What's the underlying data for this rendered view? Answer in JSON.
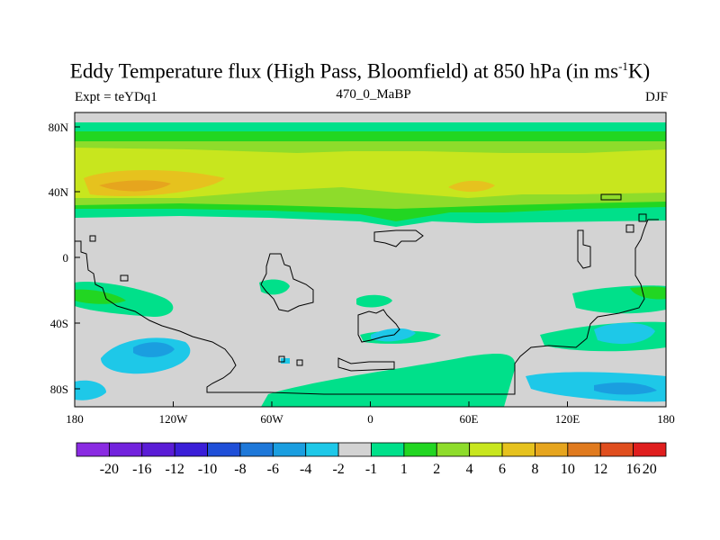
{
  "title": {
    "main": "Eddy Temperature flux (High Pass, Bloomfield) at 850 hPa (in ms",
    "superscript": "-1",
    "tail": "K)"
  },
  "subtitle_left": "Expt = teYDq1",
  "subtitle_center": "470_0_MaBP",
  "subtitle_right": "DJF",
  "axes": {
    "x_ticks": [
      "180",
      "120W",
      "60W",
      "0",
      "60E",
      "120E",
      "180"
    ],
    "y_ticks": [
      "80N",
      "40N",
      "0",
      "40S",
      "80S"
    ]
  },
  "colorbar": {
    "labels": [
      "-20",
      "-16",
      "-12",
      "-10",
      "-8",
      "-6",
      "-4",
      "-2",
      "-1",
      "1",
      "2",
      "4",
      "6",
      "8",
      "10",
      "12",
      "16",
      "20"
    ],
    "colors": [
      "#8a2be2",
      "#7222dd",
      "#5a1cd6",
      "#3a1ed8",
      "#1f4fd8",
      "#1e78d9",
      "#1a9ee0",
      "#1ec8e8",
      "#d3d3d3",
      "#00e08a",
      "#22d622",
      "#8edc2b",
      "#c8e61e",
      "#e6c21e",
      "#e6a51e",
      "#e07a1e",
      "#e04e1e",
      "#e01e1e"
    ]
  },
  "colors": {
    "background_field": "#d3d3d3",
    "coastline": "#000000"
  }
}
